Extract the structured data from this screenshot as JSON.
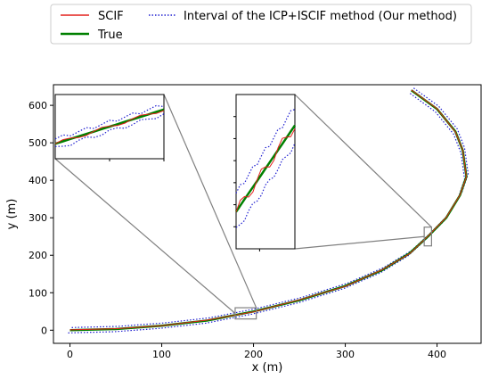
{
  "chart_data": {
    "type": "line",
    "title": "",
    "xlabel": "x (m)",
    "ylabel": "y (m)",
    "xlim": [
      -18,
      448
    ],
    "ylim": [
      -35,
      655
    ],
    "xticks": [
      0,
      100,
      200,
      300,
      400
    ],
    "yticks": [
      0,
      100,
      200,
      300,
      400,
      500,
      600
    ],
    "grid": false,
    "legend": {
      "placement": "top-left, above plot",
      "entries": [
        {
          "label": "SCIF",
          "color": "#e3201b",
          "style": "solid"
        },
        {
          "label": "True",
          "color": "#008000",
          "style": "solid-thick"
        },
        {
          "label": "Interval of the ICP+ISCIF method (Our method)",
          "color": "#1f1fd0",
          "style": "dotted"
        }
      ]
    },
    "series": [
      {
        "name": "True",
        "color": "#008000",
        "points": [
          [
            0,
            0
          ],
          [
            50,
            3
          ],
          [
            100,
            12
          ],
          [
            150,
            26
          ],
          [
            200,
            50
          ],
          [
            250,
            80
          ],
          [
            300,
            118
          ],
          [
            340,
            160
          ],
          [
            370,
            205
          ],
          [
            390,
            250
          ],
          [
            410,
            300
          ],
          [
            425,
            360
          ],
          [
            432,
            410
          ],
          [
            428,
            480
          ],
          [
            420,
            530
          ],
          [
            400,
            590
          ],
          [
            372,
            640
          ]
        ]
      },
      {
        "name": "SCIF",
        "color": "#e3201b",
        "points": [
          [
            0,
            1
          ],
          [
            50,
            4
          ],
          [
            100,
            12
          ],
          [
            150,
            27
          ],
          [
            200,
            49
          ],
          [
            250,
            81
          ],
          [
            300,
            117
          ],
          [
            340,
            161
          ],
          [
            370,
            204
          ],
          [
            390,
            251
          ],
          [
            410,
            301
          ],
          [
            425,
            361
          ],
          [
            432,
            409
          ],
          [
            428,
            481
          ],
          [
            420,
            529
          ],
          [
            400,
            591
          ],
          [
            372,
            641
          ]
        ]
      },
      {
        "name": "Interval of the ICP+ISCIF method (Our method)",
        "color": "#1f1fd0",
        "band": 6
      }
    ],
    "zoom_regions": [
      {
        "xrange": [
          180,
          203
        ],
        "yrange": [
          30,
          60
        ],
        "inset": "left"
      },
      {
        "xrange": [
          386,
          394
        ],
        "yrange": [
          225,
          275
        ],
        "inset": "middle"
      }
    ]
  }
}
